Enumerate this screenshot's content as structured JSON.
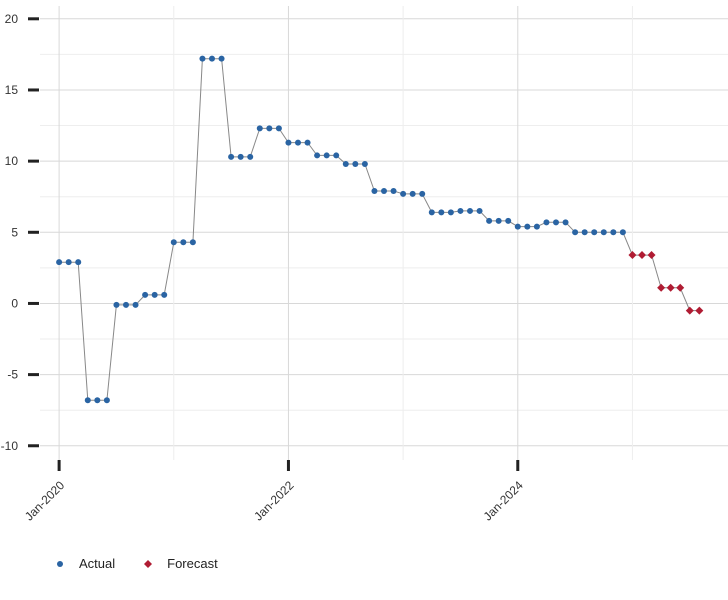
{
  "colors": {
    "actual": "#2a64a3",
    "forecast": "#b01c33",
    "line": "#888888",
    "grid": "#d8d8d8",
    "grid_minor": "#eeeeee",
    "tick": "#222222"
  },
  "legend": {
    "items": [
      {
        "label": "Actual",
        "icon": "circle-marker-icon"
      },
      {
        "label": "Forecast",
        "icon": "diamond-marker-icon"
      }
    ]
  },
  "chart_data": {
    "type": "line",
    "title": "",
    "xlabel": "",
    "ylabel": "",
    "ylim": [
      -11,
      20.9
    ],
    "yticks": [
      20,
      15,
      10,
      5,
      0,
      -5,
      -10
    ],
    "xlim": [
      "2019-11",
      "2025-11"
    ],
    "xticks": [
      {
        "date": "2020-01",
        "label": "Jan-2020"
      },
      {
        "date": "2022-01",
        "label": "Jan-2022"
      },
      {
        "date": "2024-01",
        "label": "Jan-2024"
      }
    ],
    "grid": true,
    "legend_position": "bottom-left",
    "series": [
      {
        "name": "Actual",
        "marker": "circle",
        "points": [
          [
            "2020-01",
            2.9
          ],
          [
            "2020-02",
            2.9
          ],
          [
            "2020-03",
            2.9
          ],
          [
            "2020-04",
            -6.8
          ],
          [
            "2020-05",
            -6.8
          ],
          [
            "2020-06",
            -6.8
          ],
          [
            "2020-07",
            -0.1
          ],
          [
            "2020-08",
            -0.1
          ],
          [
            "2020-09",
            -0.1
          ],
          [
            "2020-10",
            0.6
          ],
          [
            "2020-11",
            0.6
          ],
          [
            "2020-12",
            0.6
          ],
          [
            "2021-01",
            4.3
          ],
          [
            "2021-02",
            4.3
          ],
          [
            "2021-03",
            4.3
          ],
          [
            "2021-04",
            17.2
          ],
          [
            "2021-05",
            17.2
          ],
          [
            "2021-06",
            17.2
          ],
          [
            "2021-07",
            10.3
          ],
          [
            "2021-08",
            10.3
          ],
          [
            "2021-09",
            10.3
          ],
          [
            "2021-10",
            12.3
          ],
          [
            "2021-11",
            12.3
          ],
          [
            "2021-12",
            12.3
          ],
          [
            "2022-01",
            11.3
          ],
          [
            "2022-02",
            11.3
          ],
          [
            "2022-03",
            11.3
          ],
          [
            "2022-04",
            10.4
          ],
          [
            "2022-05",
            10.4
          ],
          [
            "2022-06",
            10.4
          ],
          [
            "2022-07",
            9.8
          ],
          [
            "2022-08",
            9.8
          ],
          [
            "2022-09",
            9.8
          ],
          [
            "2022-10",
            7.9
          ],
          [
            "2022-11",
            7.9
          ],
          [
            "2022-12",
            7.9
          ],
          [
            "2023-01",
            7.7
          ],
          [
            "2023-02",
            7.7
          ],
          [
            "2023-03",
            7.7
          ],
          [
            "2023-04",
            6.4
          ],
          [
            "2023-05",
            6.4
          ],
          [
            "2023-06",
            6.4
          ],
          [
            "2023-07",
            6.5
          ],
          [
            "2023-08",
            6.5
          ],
          [
            "2023-09",
            6.5
          ],
          [
            "2023-10",
            5.8
          ],
          [
            "2023-11",
            5.8
          ],
          [
            "2023-12",
            5.8
          ],
          [
            "2024-01",
            5.4
          ],
          [
            "2024-02",
            5.4
          ],
          [
            "2024-03",
            5.4
          ],
          [
            "2024-04",
            5.7
          ],
          [
            "2024-05",
            5.7
          ],
          [
            "2024-06",
            5.7
          ],
          [
            "2024-07",
            5.0
          ],
          [
            "2024-08",
            5.0
          ],
          [
            "2024-09",
            5.0
          ],
          [
            "2024-10",
            5.0
          ],
          [
            "2024-11",
            5.0
          ],
          [
            "2024-12",
            5.0
          ]
        ]
      },
      {
        "name": "Forecast",
        "marker": "diamond",
        "points": [
          [
            "2025-01",
            3.4
          ],
          [
            "2025-02",
            3.4
          ],
          [
            "2025-03",
            3.4
          ],
          [
            "2025-04",
            1.1
          ],
          [
            "2025-05",
            1.1
          ],
          [
            "2025-06",
            1.1
          ],
          [
            "2025-07",
            -0.5
          ],
          [
            "2025-08",
            -0.5
          ]
        ]
      }
    ]
  }
}
